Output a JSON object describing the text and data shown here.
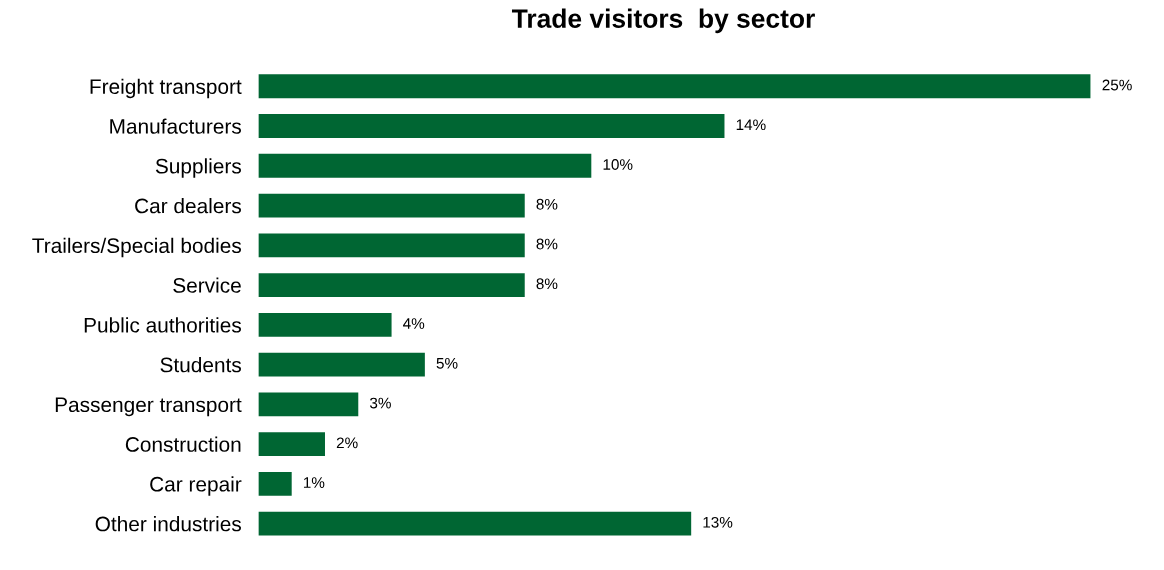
{
  "chart_data": {
    "type": "bar",
    "orientation": "horizontal",
    "title": "Trade visitors  by sector",
    "categories": [
      "Freight transport",
      "Manufacturers",
      "Suppliers",
      "Car dealers",
      "Trailers/Special bodies",
      "Service",
      "Public authorities",
      "Students",
      "Passenger transport",
      "Construction",
      "Car repair",
      "Other industries"
    ],
    "values": [
      25,
      14,
      10,
      8,
      8,
      8,
      4,
      5,
      3,
      2,
      1,
      13
    ],
    "value_labels": [
      "25%",
      "14%",
      "10%",
      "8%",
      "8%",
      "8%",
      "4%",
      "5%",
      "3%",
      "2%",
      "1%",
      "13%"
    ],
    "color": "#006633",
    "grid": false,
    "legend": false
  }
}
